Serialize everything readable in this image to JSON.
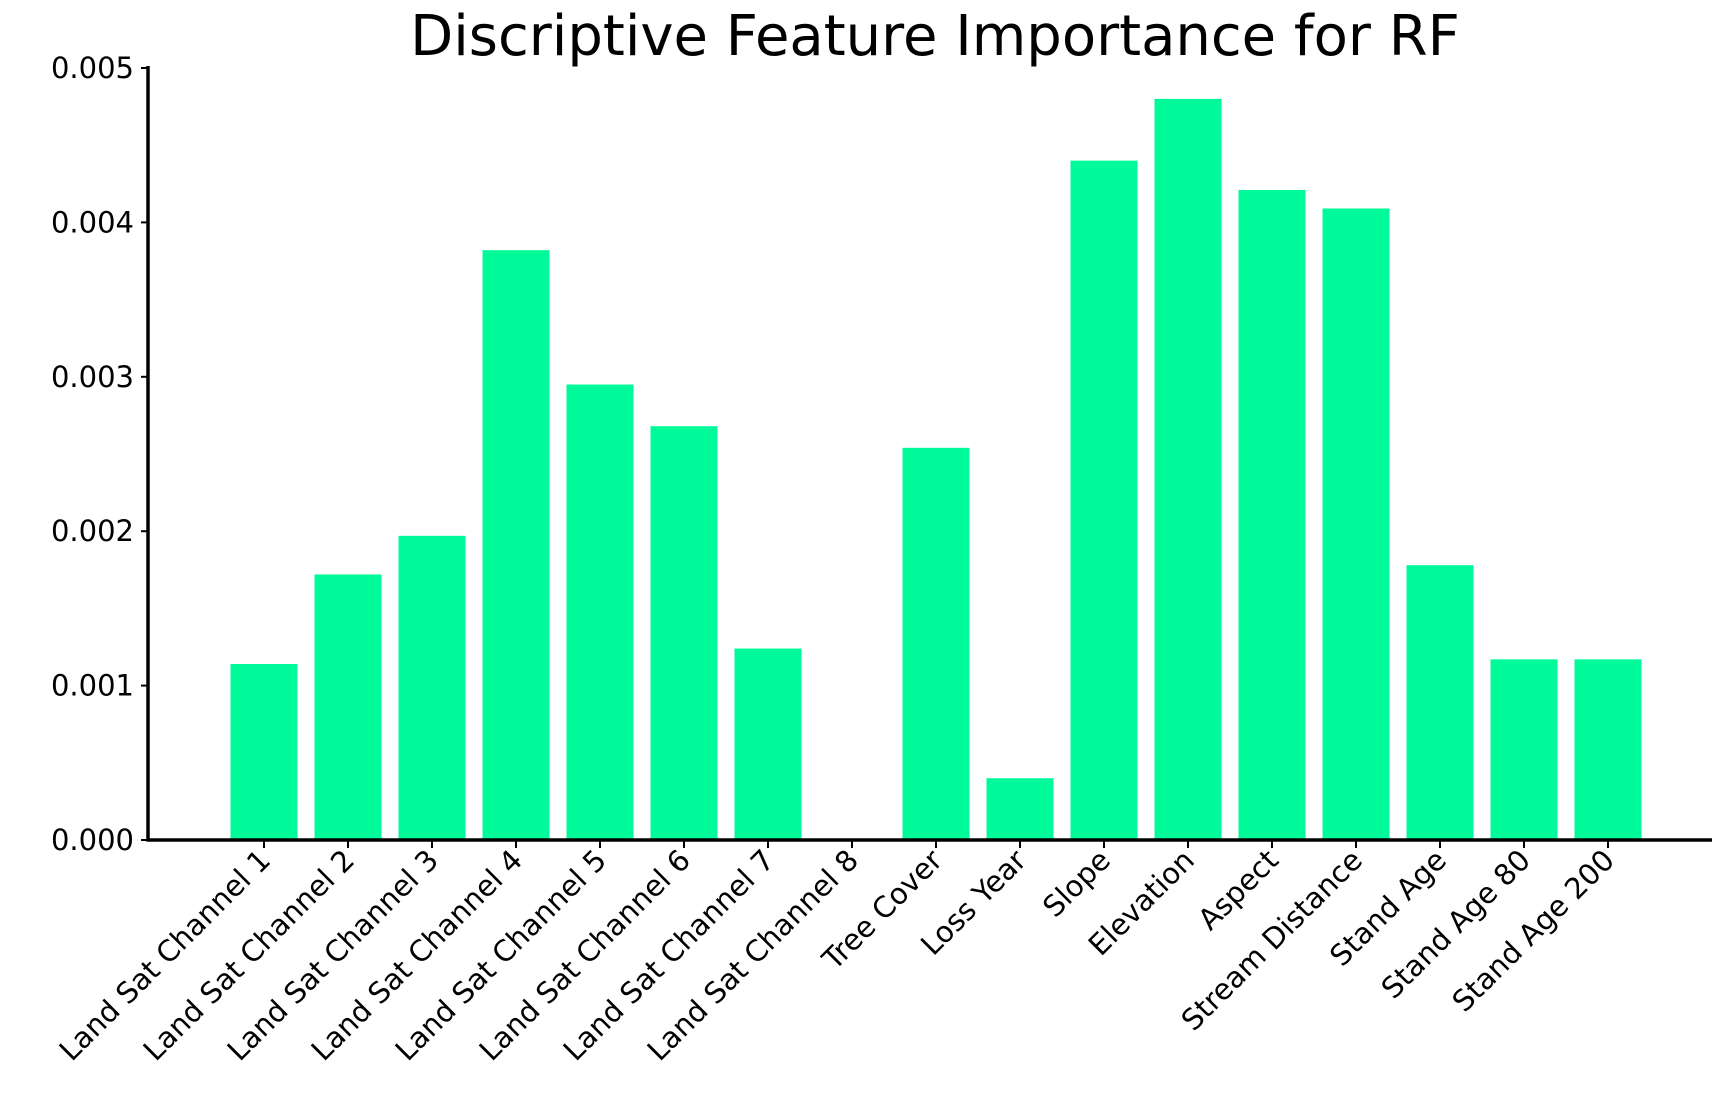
{
  "chart_data": {
    "type": "bar",
    "title": "Discriptive Feature Importance for RF",
    "xlabel": "",
    "ylabel": "",
    "categories": [
      "Land Sat Channel 1",
      "Land Sat Channel 2",
      "Land Sat Channel 3",
      "Land Sat Channel 4",
      "Land Sat Channel 5",
      "Land Sat Channel 6",
      "Land Sat Channel 7",
      "Land Sat Channel 8",
      "Tree Cover",
      "Loss Year",
      "Slope",
      "Elevation",
      "Aspect",
      "Stream Distance",
      "Stand Age",
      "Stand Age 80",
      "Stand Age 200"
    ],
    "values": [
      0.00114,
      0.00172,
      0.00197,
      0.00382,
      0.00295,
      0.00268,
      0.00124,
      0.0,
      0.00254,
      0.0004,
      0.0044,
      0.0048,
      0.00421,
      0.00409,
      0.00178,
      0.00117,
      0.00117
    ],
    "ylim": [
      0,
      0.005
    ],
    "yticks": [
      "0.000",
      "0.001",
      "0.002",
      "0.003",
      "0.004",
      "0.005"
    ],
    "ytick_values": [
      0,
      0.001,
      0.002,
      0.003,
      0.004,
      0.005
    ],
    "bar_color": "#00FA9A",
    "grid": false,
    "legend": "none"
  }
}
